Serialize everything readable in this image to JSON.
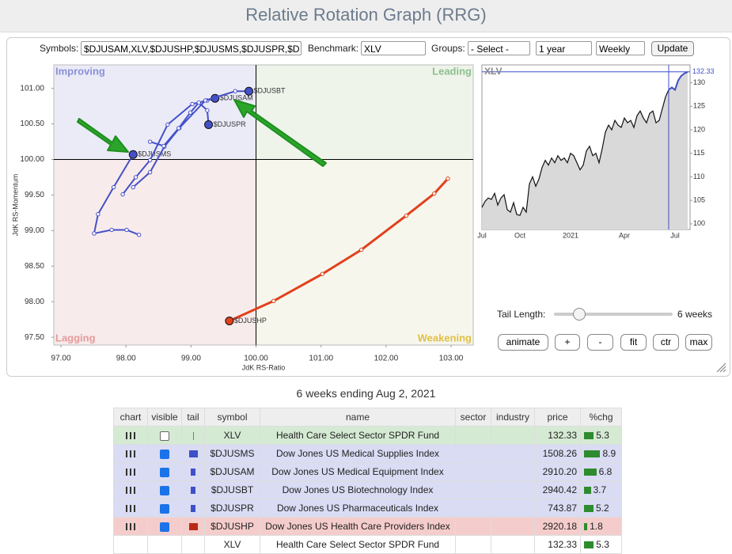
{
  "header": {
    "title": "Relative Rotation Graph (RRG)"
  },
  "controls": {
    "symbols_label": "Symbols:",
    "symbols": "$DJUSAM,XLV,$DJUSHP,$DJUSMS,$DJUSPR,$D",
    "benchmark_label": "Benchmark:",
    "benchmark": "XLV",
    "groups_label": "Groups:",
    "groups": "- Select -",
    "period": "1 year",
    "frequency": "Weekly",
    "update": "Update",
    "tail_length_label": "Tail Length:",
    "tail_length": "6 weeks",
    "buttons": [
      "animate",
      "+",
      "-",
      "fit",
      "ctr",
      "max"
    ]
  },
  "chart_data": [
    {
      "type": "scatter",
      "xlabel": "JdK RS-Ratio",
      "ylabel": "JdK RS-Momentum",
      "quadrants": [
        "Improving",
        "Leading",
        "Lagging",
        "Weakening"
      ],
      "xlim": [
        96.89,
        103.34
      ],
      "ylim": [
        97.39,
        101.33
      ],
      "xticks": [
        {
          "value": 97,
          "label": "97.00"
        },
        {
          "value": 98,
          "label": "98.00"
        },
        {
          "value": 99,
          "label": "99.00"
        },
        {
          "value": 100,
          "label": "100.00"
        },
        {
          "value": 101,
          "label": "101.00"
        },
        {
          "value": 102,
          "label": "102.00"
        },
        {
          "value": 103,
          "label": "103.00"
        }
      ],
      "yticks": [
        {
          "value": 97.5,
          "label": "97.50"
        },
        {
          "value": 98,
          "label": "98.00"
        },
        {
          "value": 98.5,
          "label": "98.50"
        },
        {
          "value": 99,
          "label": "99.00"
        },
        {
          "value": 99.5,
          "label": "99.50"
        },
        {
          "value": 100,
          "label": "100.00"
        },
        {
          "value": 100.5,
          "label": "100.50"
        },
        {
          "value": 101,
          "label": "101.00"
        }
      ],
      "series": [
        {
          "name": "$DJUSMS",
          "color": "#4550c8",
          "x": [
            98.2,
            98.01,
            97.78,
            97.51,
            97.57,
            97.81,
            98.11
          ],
          "y": [
            98.94,
            99.01,
            99.01,
            98.96,
            99.23,
            99.61,
            100.07
          ]
        },
        {
          "name": "$DJUSAM",
          "color": "#4550c8",
          "x": [
            97.95,
            98.15,
            98.37,
            98.64,
            99.02,
            99.25,
            99.37
          ],
          "y": [
            99.51,
            99.75,
            99.99,
            100.49,
            100.78,
            100.83,
            100.86
          ]
        },
        {
          "name": "$DJUSBT",
          "color": "#4550c8",
          "x": [
            98.11,
            98.37,
            98.59,
            98.82,
            99.22,
            99.68,
            99.89
          ],
          "y": [
            99.61,
            99.82,
            100.18,
            100.44,
            100.83,
            100.96,
            100.96
          ]
        },
        {
          "name": "$DJUSPR",
          "color": "#4550c8",
          "x": [
            98.37,
            98.58,
            98.81,
            98.99,
            99.12,
            99.25,
            99.27
          ],
          "y": [
            100.25,
            100.19,
            100.44,
            100.66,
            100.8,
            100.69,
            100.49
          ]
        },
        {
          "name": "$DJUSHP",
          "color": "#e2401c",
          "x": [
            102.95,
            102.74,
            102.31,
            101.62,
            101.02,
            100.27,
            99.59
          ],
          "y": [
            99.73,
            99.52,
            99.21,
            98.73,
            98.39,
            98.01,
            97.73
          ]
        }
      ]
    },
    {
      "type": "area",
      "title": "XLV",
      "color": "#111111",
      "tail_color": "#3f4fc8",
      "categories": [
        "Jul",
        null,
        null,
        null,
        null,
        null,
        null,
        null,
        null,
        null,
        null,
        null,
        "Oct",
        null,
        null,
        null,
        null,
        null,
        null,
        null,
        null,
        null,
        null,
        null,
        null,
        null,
        null,
        null,
        "2021",
        null,
        null,
        null,
        null,
        null,
        null,
        null,
        null,
        null,
        null,
        null,
        null,
        null,
        null,
        null,
        null,
        "Apr",
        null,
        null,
        null,
        null,
        null,
        null,
        null,
        null,
        null,
        null,
        null,
        null,
        null,
        null,
        null,
        "Jul",
        null,
        null,
        null,
        null
      ],
      "values": [
        103.5,
        104.8,
        105.5,
        105.2,
        106.5,
        104.0,
        105.5,
        106.2,
        103.0,
        102.5,
        104.5,
        102.0,
        101.8,
        103.5,
        102.5,
        108.5,
        110.0,
        108.0,
        109.5,
        112.0,
        113.5,
        112.5,
        114.0,
        113.0,
        114.5,
        113.5,
        114.0,
        113.0,
        115.0,
        114.5,
        113.0,
        111.5,
        112.5,
        115.5,
        116.5,
        114.5,
        115.0,
        113.0,
        116.0,
        119.5,
        121.0,
        120.0,
        122.0,
        121.0,
        120.5,
        122.5,
        121.5,
        122.0,
        120.5,
        123.0,
        124.0,
        122.5,
        121.5,
        123.5,
        124.0,
        121.5,
        122.0,
        124.5,
        127.0,
        128.5,
        129.0,
        128.5,
        130.5,
        131.5,
        132.0,
        132.33
      ],
      "ylim": [
        98.8,
        133.8
      ],
      "yticks": [
        100,
        105,
        110,
        115,
        120,
        125,
        130
      ]
    }
  ],
  "table": {
    "caption": "6 weeks ending Aug 2, 2021",
    "headers": [
      "chart",
      "visible",
      "tail",
      "symbol",
      "name",
      "sector",
      "industry",
      "price",
      "%chg"
    ],
    "rows": [
      {
        "symbol": "XLV",
        "name": "Health Care Select Sector SPDR Fund",
        "price": "132.33",
        "chg": 5.3,
        "visible": false,
        "color": "#3aa83a",
        "background": "#d5ead3"
      },
      {
        "symbol": "$DJUSMS",
        "name": "Dow Jones US Medical Supplies Index",
        "price": "1508.26",
        "chg": 8.9,
        "visible": true,
        "color": "#3f4fc8",
        "background": "#d9dcf3"
      },
      {
        "symbol": "$DJUSAM",
        "name": "Dow Jones US Medical Equipment Index",
        "price": "2910.20",
        "chg": 6.8,
        "visible": true,
        "color": "#3f4fc8",
        "background": "#d9dcf3"
      },
      {
        "symbol": "$DJUSBT",
        "name": "Dow Jones US Biotechnology Index",
        "price": "2940.42",
        "chg": 3.7,
        "visible": true,
        "color": "#3f4fc8",
        "background": "#d9dcf3"
      },
      {
        "symbol": "$DJUSPR",
        "name": "Dow Jones US Pharmaceuticals Index",
        "price": "743.87",
        "chg": 5.2,
        "visible": true,
        "color": "#3f4fc8",
        "background": "#d9dcf3"
      },
      {
        "symbol": "$DJUSHP",
        "name": "Dow Jones US Health Care Providers Index",
        "price": "2920.18",
        "chg": 1.8,
        "visible": true,
        "color": "#b82a14",
        "background": "#f5cccc"
      },
      {
        "symbol": "XLV",
        "name": "Health Care Select Sector SPDR Fund",
        "price": "132.33",
        "chg": 5.3
      }
    ]
  }
}
